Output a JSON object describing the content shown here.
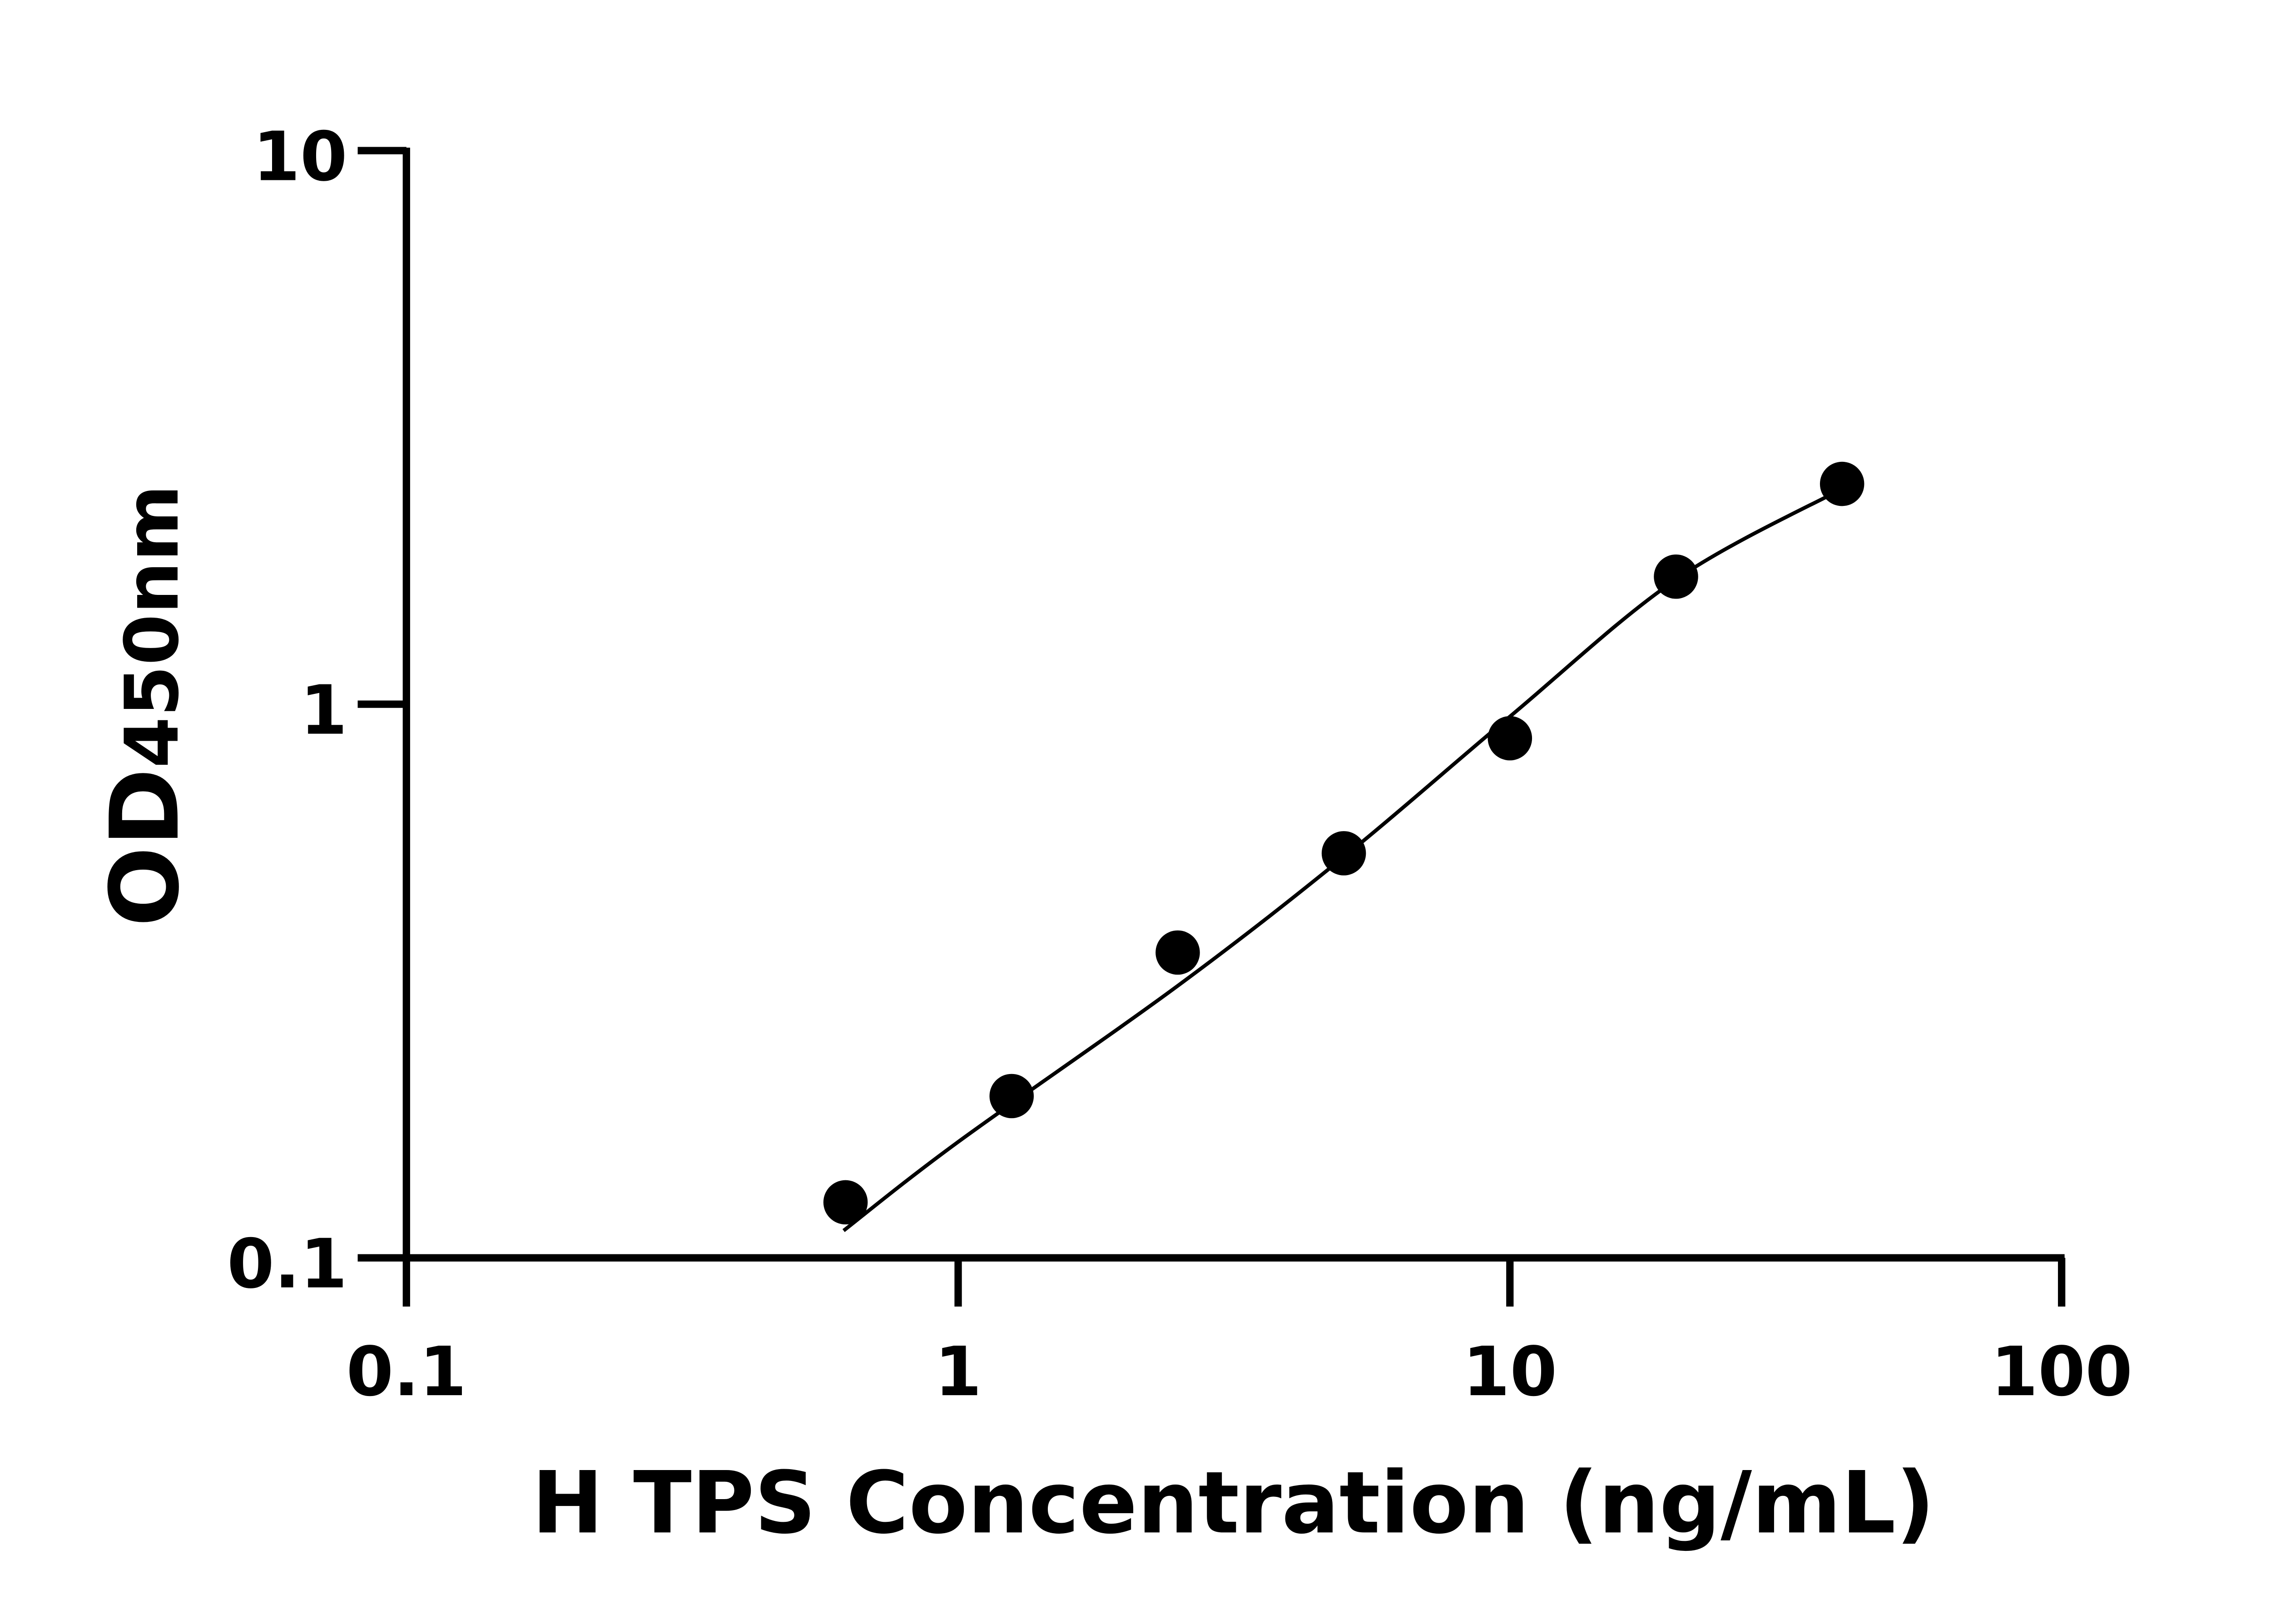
{
  "chart_data": {
    "type": "scatter",
    "title": "",
    "xlabel": "H TPS Concentration (ng/mL)",
    "ylabel_main": "OD",
    "ylabel_sub": "450nm",
    "x_scale": "log",
    "y_scale": "log",
    "xlim": [
      0.1,
      100
    ],
    "ylim": [
      0.1,
      10
    ],
    "x_ticks": [
      "0.1",
      "1",
      "10",
      "100"
    ],
    "y_ticks": [
      "0.1",
      "1",
      "10"
    ],
    "grid": false,
    "legend": "none",
    "points": {
      "x": [
        0.625,
        1.25,
        2.5,
        5,
        10,
        20,
        40
      ],
      "y": [
        0.126,
        0.196,
        0.356,
        0.538,
        0.868,
        1.7,
        2.5
      ]
    },
    "fit_curve": {
      "x": [
        0.62,
        1,
        2.5,
        5,
        10,
        20,
        40
      ],
      "y": [
        0.112,
        0.162,
        0.31,
        0.53,
        0.95,
        1.68,
        2.45
      ]
    },
    "colors": {
      "marker": "#000000",
      "line": "#000000",
      "axis": "#000000"
    }
  }
}
